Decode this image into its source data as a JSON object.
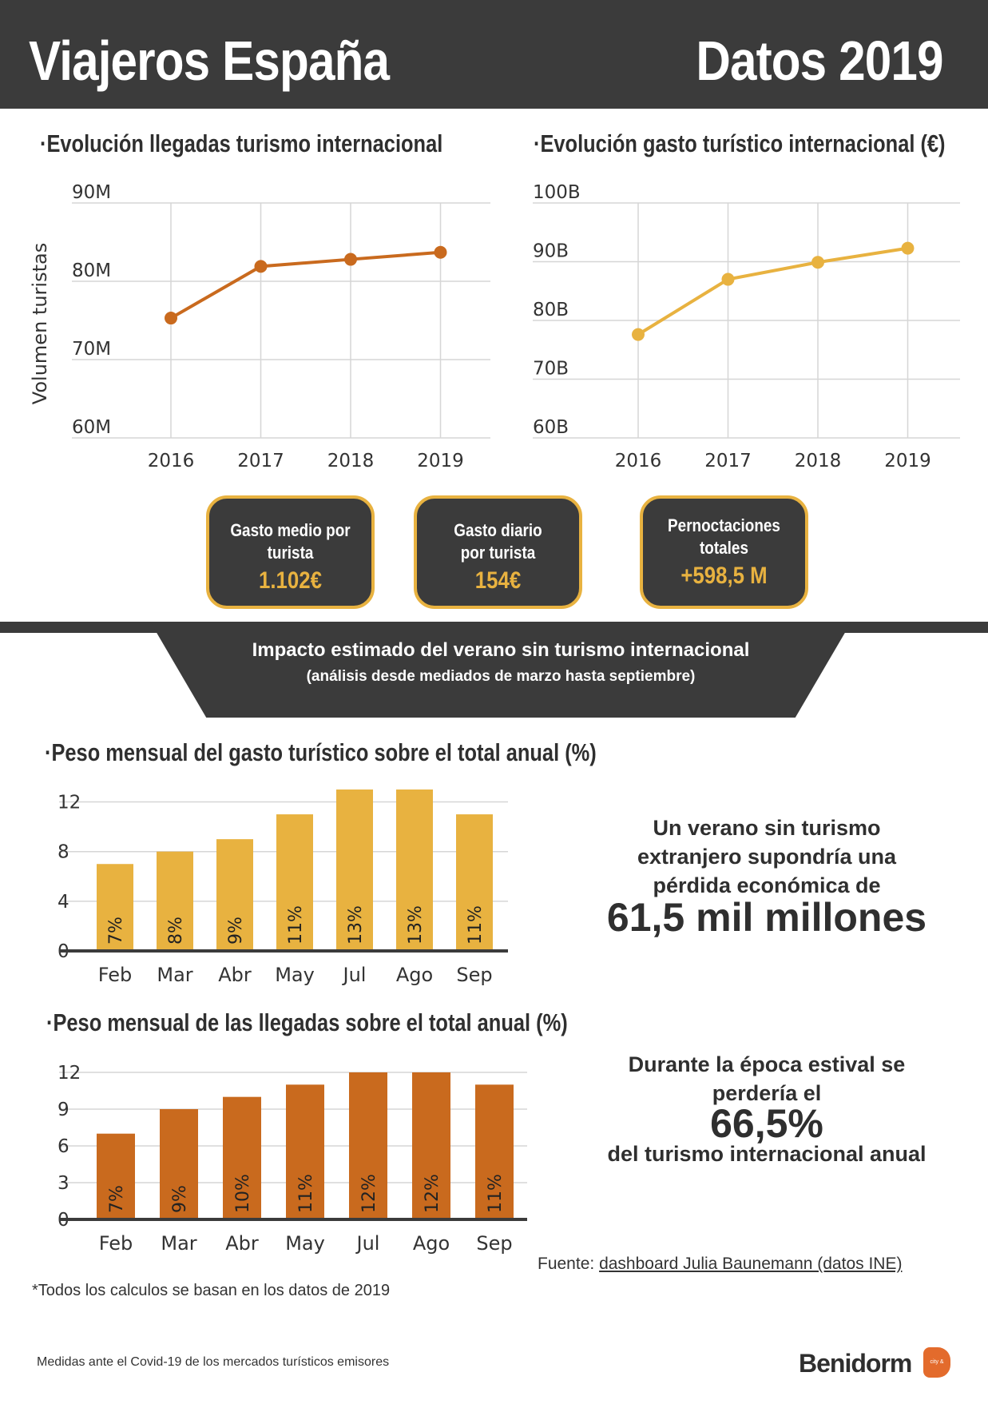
{
  "header": {
    "title_left": "Viajeros España",
    "title_right": "Datos 2019"
  },
  "cards": [
    {
      "label": "Gasto medio por\nturista",
      "value": "1.102€"
    },
    {
      "label": "Gasto diario\npor turista",
      "value": "154€"
    },
    {
      "label": "Pernoctaciones\ntotales",
      "value": "+598,5 M"
    }
  ],
  "impact": {
    "title": "Impacto estimado del verano sin turismo internacional",
    "subtitle": "(análisis desde mediados de marzo hasta septiembre)"
  },
  "side1": {
    "lines": [
      "Un verano sin turismo",
      "extranjero supondría una",
      "pérdida económica de"
    ],
    "value": "61,5 mil millones"
  },
  "side2": {
    "lines": [
      "Durante la época estival se",
      "perdería  el"
    ],
    "value": "66,5%",
    "tail": "del turismo internacional anual"
  },
  "source": {
    "prefix": "Fuente: ",
    "link": "dashboard Julia Baunemann (datos INE)"
  },
  "note": "*Todos los calculos se basan en los datos de 2019",
  "footer": {
    "note": "Medidas ante el Covid-19 de los mercados turísticos emisores",
    "brand": "Benidorm",
    "brand_mark": "city & beaches"
  },
  "colors": {
    "dark": "#3b3b3b",
    "gold": "#e8b240",
    "orange": "#c96a1e",
    "grid": "#d6d6d6"
  },
  "chart_data": [
    {
      "type": "line",
      "title": "·Evolución llegadas turismo internacional",
      "ylabel": "Volumen turistas",
      "x": [
        "2016",
        "2017",
        "2018",
        "2019"
      ],
      "yticks": [
        "60M",
        "70M",
        "80M",
        "90M"
      ],
      "ylim": [
        60,
        90
      ],
      "series": [
        {
          "values": [
            75.3,
            81.9,
            82.8,
            83.7
          ]
        }
      ],
      "color": "#c96a1e"
    },
    {
      "type": "line",
      "title": "·Evolución gasto turístico internacional (€)",
      "ylabel": "",
      "x": [
        "2016",
        "2017",
        "2018",
        "2019"
      ],
      "yticks": [
        "60B",
        "70B",
        "80B",
        "90B",
        "100B"
      ],
      "ylim": [
        60,
        100
      ],
      "series": [
        {
          "values": [
            77.6,
            87.0,
            89.9,
            92.3
          ]
        }
      ],
      "color": "#e8b240"
    },
    {
      "type": "bar",
      "title": "·Peso mensual del gasto turístico sobre el total anual (%)",
      "categories": [
        "Feb",
        "Mar",
        "Abr",
        "May",
        "Jul",
        "Ago",
        "Sep"
      ],
      "values": [
        7,
        8,
        9,
        11,
        13,
        13,
        11
      ],
      "labels": [
        "7%",
        "8%",
        "9%",
        "11%",
        "13%",
        "13%",
        "11%"
      ],
      "yticks": [
        "0",
        "4",
        "8",
        "12"
      ],
      "ylim": [
        0,
        13
      ],
      "color": "#e8b240"
    },
    {
      "type": "bar",
      "title": "·Peso mensual de las llegadas sobre el total anual (%)",
      "categories": [
        "Feb",
        "Mar",
        "Abr",
        "May",
        "Jul",
        "Ago",
        "Sep"
      ],
      "values": [
        7,
        9,
        10,
        11,
        12,
        12,
        11
      ],
      "labels": [
        "7%",
        "9%",
        "10%",
        "11%",
        "12%",
        "12%",
        "11%"
      ],
      "yticks": [
        "0",
        "3",
        "6",
        "9",
        "12"
      ],
      "ylim": [
        0,
        12
      ],
      "color": "#c96a1e"
    }
  ]
}
